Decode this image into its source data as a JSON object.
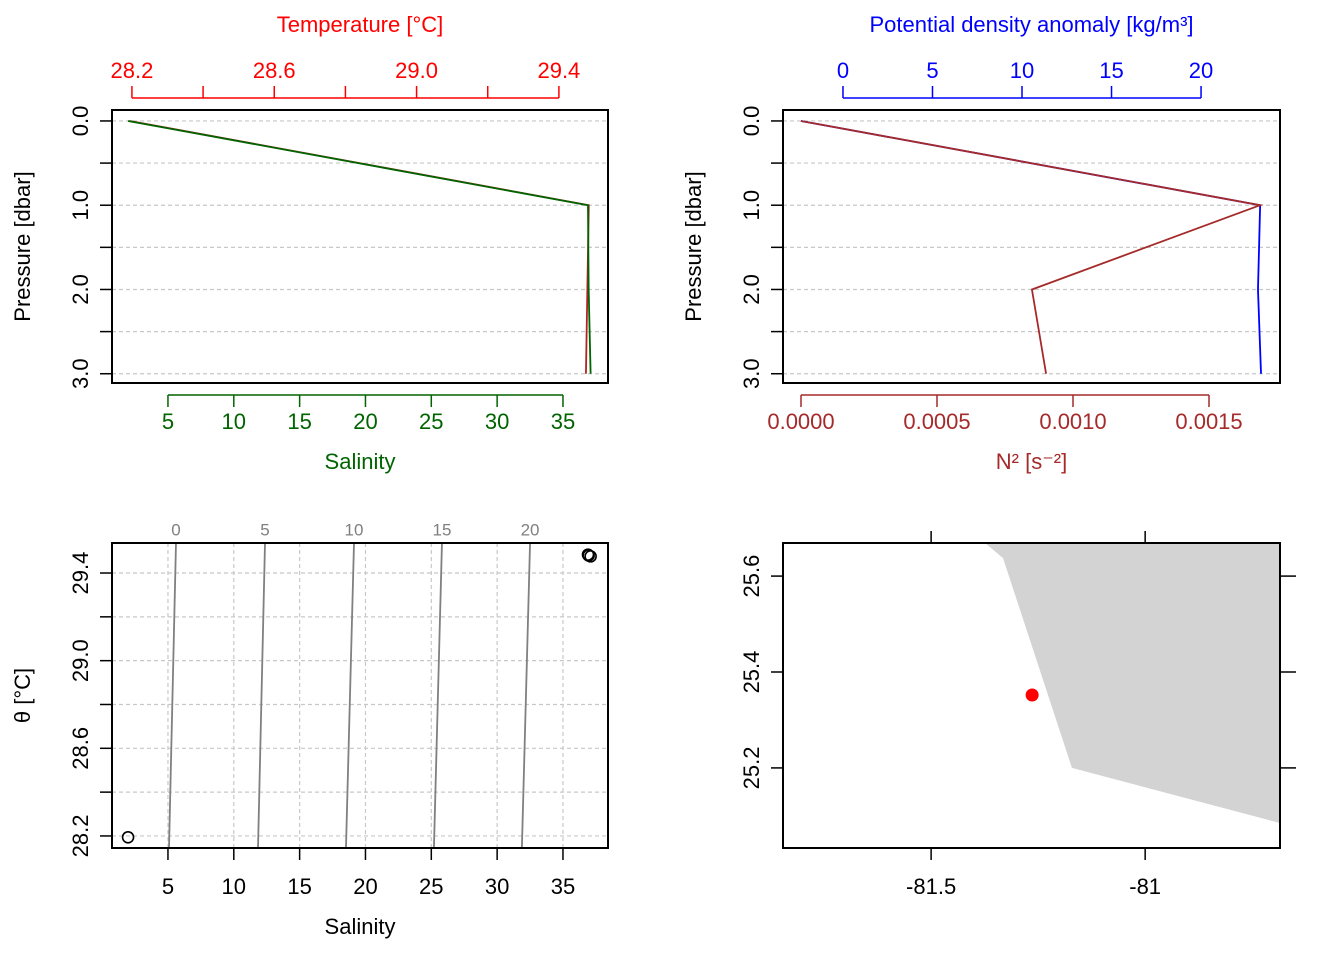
{
  "chart_data": [
    {
      "type": "profile",
      "y": [
        0,
        1,
        2,
        3
      ],
      "y_label": "Pressure [dbar]",
      "ylim": [
        -0.13,
        3.11
      ],
      "yticks": [
        {
          "value": 0,
          "label": "0.0"
        },
        {
          "value": 1,
          "label": "1.0"
        },
        {
          "value": 2,
          "label": "2.0"
        },
        {
          "value": 3,
          "label": "3.0"
        }
      ],
      "yticks_minor": [
        0.5,
        1.5,
        2.5
      ],
      "grid": true,
      "x_label": "Salinity",
      "x_color": "#006400",
      "xlim": [
        0.75,
        38.42
      ],
      "xticks": [
        5,
        10,
        15,
        20,
        25,
        30,
        35
      ],
      "x2_label": "Temperature [°C]",
      "x2_color": "#ff0000",
      "x2lim": [
        28.144,
        29.538
      ],
      "x2ticks": [
        28.2,
        28.6,
        {
          "value": 29,
          "label": "29.0"
        },
        29.4
      ],
      "x2ticks_minor": [
        28.4,
        28.8,
        29.2
      ],
      "series": [
        {
          "axis": "x2",
          "color": "#b22222",
          "values": [
            28.194,
            29.484,
            29.48,
            29.476
          ]
        },
        {
          "axis": "x",
          "color": "#006400",
          "values": [
            1.97,
            36.9,
            36.95,
            37.1
          ]
        }
      ]
    },
    {
      "type": "profile",
      "y": [
        0,
        1,
        2,
        3
      ],
      "y_label": "Pressure [dbar]",
      "ylim": [
        -0.13,
        3.11
      ],
      "yticks": [
        {
          "value": 0,
          "label": "0.0"
        },
        {
          "value": 1,
          "label": "1.0"
        },
        {
          "value": 2,
          "label": "2.0"
        },
        {
          "value": 3,
          "label": "3.0"
        }
      ],
      "yticks_minor": [
        0.5,
        1.5,
        2.5
      ],
      "grid": true,
      "x_label": "N² [s⁻²]",
      "x_color": "#a52a2a",
      "xlim": [
        -6.62e-05,
        0.001761
      ],
      "xticks": [
        {
          "value": 0,
          "label": "0.0000"
        },
        0.0005,
        {
          "value": 0.001,
          "label": "0.0010"
        },
        0.0015
      ],
      "x2_label": "Potential density anomaly [kg/m³]",
      "x2_color": "#0000ff",
      "x2lim": [
        -3.35,
        24.41
      ],
      "x2ticks": [
        0,
        5,
        10,
        15,
        20
      ],
      "x2ticks_minor": [],
      "series": [
        {
          "axis": "x2",
          "color": "#0000ff",
          "values": [
            -2.35,
            23.3,
            23.18,
            23.35
          ]
        },
        {
          "axis": "x",
          "color": "#a52a2a",
          "values": [
            0,
            0.001688,
            0.000849,
            0.000901
          ]
        }
      ]
    },
    {
      "type": "ts",
      "x_label": "Salinity",
      "xlim": [
        0.75,
        38.42
      ],
      "xticks": [
        5,
        10,
        15,
        20,
        25,
        30,
        35
      ],
      "y_label": "θ [°C]",
      "ylim": [
        28.145,
        29.537
      ],
      "yticks": [
        28.2,
        28.6,
        {
          "value": 29,
          "label": "29.0"
        },
        29.4
      ],
      "yticks_minor": [
        28.4,
        28.8,
        29.2
      ],
      "grid": true,
      "x": [
        1.97,
        36.9,
        36.95,
        37.1
      ],
      "values": [
        28.194,
        29.484,
        29.48,
        29.476
      ],
      "isopycnals": {
        "color": "#808080",
        "levels": [
          0,
          5,
          10,
          15,
          20
        ],
        "salinity_bottom": [
          5.08,
          11.84,
          18.52,
          25.2,
          31.88
        ],
        "salinity_top": [
          5.61,
          12.37,
          19.13,
          25.81,
          32.5
        ]
      }
    },
    {
      "type": "map",
      "xlim": [
        -81.846,
        -80.685
      ],
      "xticks": [
        -81.5,
        -81
      ],
      "ylim": [
        25.033,
        25.669
      ],
      "yticks": [
        25.2,
        25.4,
        25.6
      ],
      "land_color": "#d3d3d3",
      "coastline": {
        "lon": [
          -81.374,
          -81.332,
          -81.171,
          -80.685,
          -80.685
        ],
        "lat": [
          25.669,
          25.6375,
          25.2,
          25.085,
          25.669
        ]
      },
      "station": {
        "lon": -81.264,
        "lat": 25.352,
        "color": "#ff0000"
      }
    }
  ]
}
